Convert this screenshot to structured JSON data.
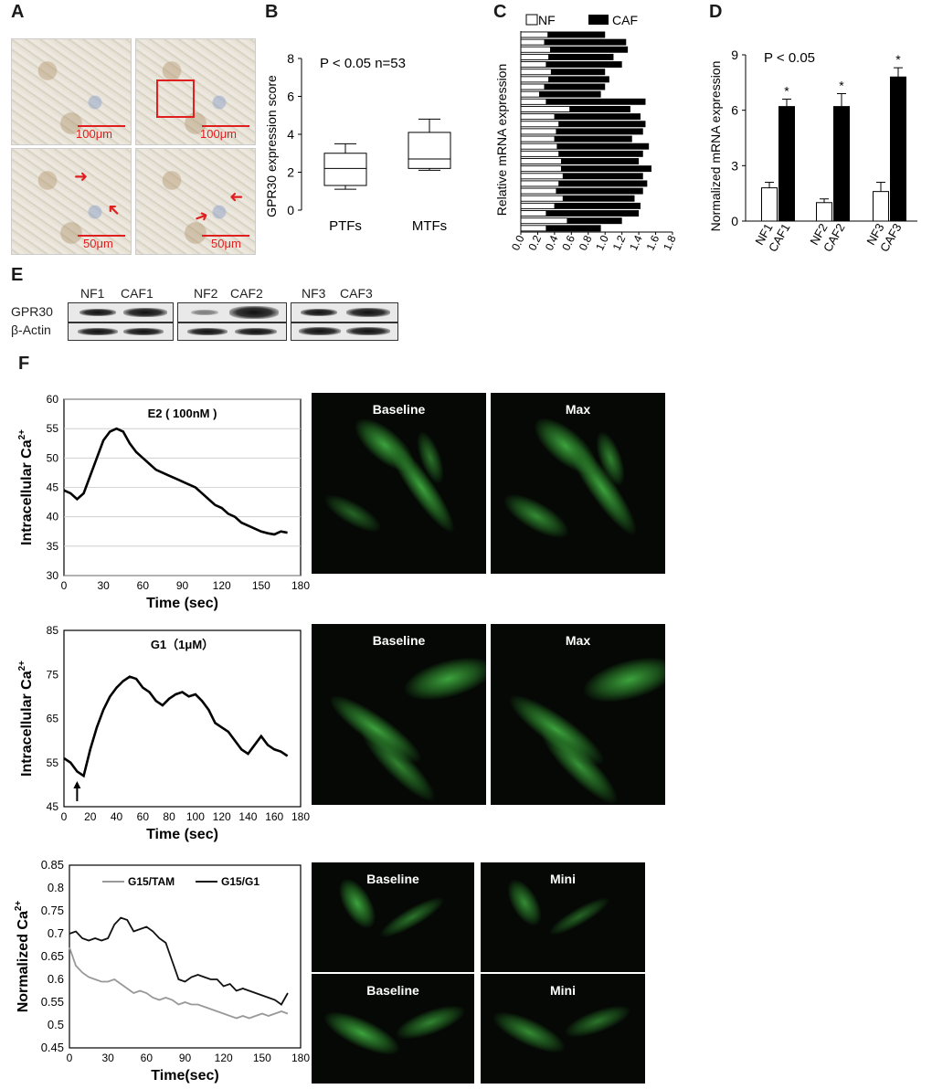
{
  "panels": {
    "A": "A",
    "B": "B",
    "C": "C",
    "D": "D",
    "E": "E",
    "F": "F"
  },
  "panelA": {
    "scale_bars": [
      "100μm",
      "100μm",
      "50μm",
      "50μm"
    ]
  },
  "chart_data": [
    {
      "id": "B",
      "type": "box",
      "ylabel": "GPR30 expression score",
      "annotation": "P < 0.05  n=53",
      "categories": [
        "PTFs",
        "MTFs"
      ],
      "boxes": [
        {
          "min": 1.1,
          "q1": 1.3,
          "median": 2.2,
          "q3": 3.0,
          "max": 3.5
        },
        {
          "min": 2.1,
          "q1": 2.2,
          "median": 2.7,
          "q3": 4.1,
          "max": 4.8
        }
      ],
      "yticks": [
        "0",
        "2",
        "4",
        "6",
        "8"
      ],
      "ylim": [
        0,
        8
      ]
    },
    {
      "id": "C",
      "type": "bar",
      "orientation": "horizontal",
      "xlabel": "Relative mRNA expression",
      "legend": [
        "NF",
        "CAF"
      ],
      "xticks": [
        "0.0",
        "0.2",
        "0.4",
        "0.6",
        "0.8",
        "1.0",
        "1.2",
        "1.4",
        "1.6",
        "1.8"
      ],
      "xlim": [
        0,
        1.8
      ],
      "series": [
        {
          "name": "NF",
          "values": [
            0.32,
            0.28,
            0.35,
            0.33,
            0.3,
            0.36,
            0.33,
            0.28,
            0.22,
            0.3,
            0.58,
            0.4,
            0.45,
            0.42,
            0.4,
            0.43,
            0.45,
            0.48,
            0.48,
            0.5,
            0.45,
            0.42,
            0.5,
            0.4,
            0.3,
            0.55,
            0.3
          ]
        },
        {
          "name": "CAF",
          "values": [
            1.0,
            1.25,
            1.27,
            1.1,
            1.2,
            1.0,
            1.05,
            1.0,
            0.95,
            1.48,
            1.3,
            1.42,
            1.48,
            1.45,
            1.32,
            1.52,
            1.45,
            1.4,
            1.55,
            1.45,
            1.5,
            1.45,
            1.35,
            1.42,
            1.4,
            1.2,
            0.95
          ]
        }
      ]
    },
    {
      "id": "D",
      "type": "bar",
      "ylabel": "Normalized mRNA expression",
      "annotation": "P < 0.05",
      "categories": [
        "NF1",
        "CAF1",
        "NF2",
        "CAF2",
        "NF3",
        "CAF3"
      ],
      "values": [
        1.8,
        6.2,
        1.0,
        6.2,
        1.6,
        7.8
      ],
      "errors": [
        0.3,
        0.4,
        0.2,
        0.7,
        0.5,
        0.5
      ],
      "significance": [
        "",
        "*",
        "",
        "*",
        "",
        "*"
      ],
      "yticks": [
        "0",
        "3",
        "6",
        "9"
      ],
      "ylim": [
        0,
        9
      ]
    },
    {
      "id": "F1",
      "type": "line",
      "title": "E2 ( 100nM )",
      "xlabel": "Time (sec)",
      "ylabel": "Intracellular Ca",
      "ylabel_sup": "2+",
      "xticks": [
        "0",
        "30",
        "60",
        "90",
        "120",
        "150",
        "180"
      ],
      "yticks": [
        "30",
        "35",
        "40",
        "45",
        "50",
        "55",
        "60"
      ],
      "xlim": [
        0,
        180
      ],
      "ylim": [
        30,
        60
      ],
      "x": [
        0,
        5,
        10,
        15,
        20,
        25,
        30,
        35,
        40,
        45,
        50,
        55,
        60,
        65,
        70,
        75,
        80,
        85,
        90,
        95,
        100,
        105,
        110,
        115,
        120,
        125,
        130,
        135,
        140,
        145,
        150,
        155,
        160,
        165,
        170
      ],
      "y": [
        44.5,
        44,
        43,
        44,
        47,
        50,
        53,
        54.5,
        55,
        54.5,
        52.5,
        51,
        50,
        49,
        48,
        47.5,
        47,
        46.5,
        46,
        45.5,
        45,
        44,
        43,
        42,
        41.5,
        40.5,
        40,
        39,
        38.5,
        38,
        37.5,
        37.2,
        37,
        37.5,
        37.3
      ]
    },
    {
      "id": "F2",
      "type": "line",
      "title": "G1（1μM）",
      "xlabel": "Time (sec)",
      "ylabel": "Intracellular Ca",
      "ylabel_sup": "2+",
      "xticks": [
        "0",
        "20",
        "40",
        "60",
        "80",
        "100",
        "120",
        "140",
        "160",
        "180"
      ],
      "yticks": [
        "45",
        "55",
        "65",
        "75",
        "85"
      ],
      "xlim": [
        0,
        180
      ],
      "ylim": [
        45,
        85
      ],
      "arrow_at_x": 10,
      "x": [
        0,
        5,
        10,
        15,
        20,
        25,
        30,
        35,
        40,
        45,
        50,
        55,
        60,
        65,
        70,
        75,
        80,
        85,
        90,
        95,
        100,
        105,
        110,
        115,
        120,
        125,
        130,
        135,
        140,
        145,
        150,
        155,
        160,
        165,
        170
      ],
      "y": [
        56,
        55,
        53,
        52,
        58,
        63,
        67,
        70,
        72,
        73.5,
        74.5,
        74,
        72,
        71,
        69,
        68,
        69.5,
        70.5,
        71,
        70,
        70.5,
        69,
        67,
        64,
        63,
        62,
        60,
        58,
        57,
        59,
        61,
        59,
        58,
        57.5,
        56.5
      ]
    },
    {
      "id": "F3",
      "type": "line",
      "xlabel": "Time(sec)",
      "ylabel": "Normalized Ca",
      "ylabel_sup": "2+",
      "legend": [
        "G15/TAM",
        "G15/G1"
      ],
      "xticks": [
        "0",
        "30",
        "60",
        "90",
        "120",
        "150",
        "180"
      ],
      "yticks": [
        "0.45",
        "0.5",
        "0.55",
        "0.6",
        "0.65",
        "0.7",
        "0.75",
        "0.8",
        "0.85"
      ],
      "xlim": [
        0,
        180
      ],
      "ylim": [
        0.45,
        0.85
      ],
      "series": [
        {
          "name": "G15/TAM",
          "color": "#999999",
          "x": [
            0,
            5,
            10,
            15,
            20,
            25,
            30,
            35,
            40,
            45,
            50,
            55,
            60,
            65,
            70,
            75,
            80,
            85,
            90,
            95,
            100,
            105,
            110,
            115,
            120,
            125,
            130,
            135,
            140,
            145,
            150,
            155,
            160,
            165,
            170
          ],
          "y": [
            0.67,
            0.63,
            0.615,
            0.605,
            0.6,
            0.595,
            0.595,
            0.6,
            0.59,
            0.58,
            0.57,
            0.575,
            0.57,
            0.56,
            0.555,
            0.56,
            0.555,
            0.545,
            0.55,
            0.545,
            0.545,
            0.54,
            0.535,
            0.53,
            0.525,
            0.52,
            0.515,
            0.52,
            0.515,
            0.52,
            0.525,
            0.52,
            0.525,
            0.53,
            0.525
          ]
        },
        {
          "name": "G15/G1",
          "color": "#111111",
          "x": [
            0,
            5,
            10,
            15,
            20,
            25,
            30,
            35,
            40,
            45,
            50,
            55,
            60,
            65,
            70,
            75,
            80,
            85,
            90,
            95,
            100,
            105,
            110,
            115,
            120,
            125,
            130,
            135,
            140,
            145,
            150,
            155,
            160,
            165,
            170
          ],
          "y": [
            0.7,
            0.705,
            0.69,
            0.685,
            0.69,
            0.685,
            0.69,
            0.72,
            0.735,
            0.73,
            0.705,
            0.71,
            0.715,
            0.705,
            0.69,
            0.68,
            0.64,
            0.6,
            0.595,
            0.605,
            0.61,
            0.605,
            0.6,
            0.6,
            0.585,
            0.59,
            0.575,
            0.58,
            0.575,
            0.57,
            0.565,
            0.56,
            0.555,
            0.545,
            0.57
          ]
        }
      ]
    }
  ],
  "panelE": {
    "row_labels": [
      "GPR30",
      "β-Actin"
    ],
    "lanes": [
      "NF1",
      "CAF1",
      "NF2",
      "CAF2",
      "NF3",
      "CAF3"
    ]
  },
  "fluo": {
    "row1": [
      "Baseline",
      "Max"
    ],
    "row2": [
      "Baseline",
      "Max"
    ],
    "row3": [
      "Baseline",
      "Mini",
      "Baseline",
      "Mini"
    ]
  }
}
